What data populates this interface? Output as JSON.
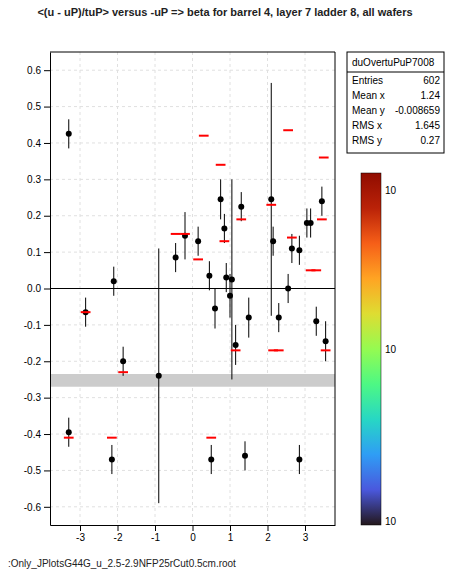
{
  "chart_data": {
    "type": "scatter",
    "title": "<(u - uP)/tuP> versus -uP => beta for barrel 4, layer 7 ladder 8, all wafers",
    "xlim": [
      -3.8,
      3.8
    ],
    "ylim": [
      -0.65,
      0.65
    ],
    "xticks": [
      -3,
      -2,
      -1,
      0,
      1,
      2,
      3
    ],
    "yticks": [
      -0.6,
      -0.5,
      -0.4,
      -0.3,
      -0.2,
      -0.1,
      {
        "value": 0.0,
        "label": "0.0"
      },
      0.1,
      0.2,
      0.3,
      0.4,
      0.5,
      0.6
    ],
    "grid": true,
    "hline": 0,
    "bands": [
      {
        "from": -0.27,
        "to": -0.235,
        "color": "#cccccc"
      }
    ],
    "series": [
      {
        "type": "scatter",
        "color": "black",
        "marker": "circle",
        "x": [
          -3.3,
          -2.85,
          -2.1,
          -1.85,
          -0.9,
          -0.45,
          -0.2,
          0.15,
          0.45,
          0.6,
          0.75,
          0.85,
          0.9,
          1.0,
          1.05,
          1.15,
          1.3,
          1.5,
          2.1,
          2.15,
          2.3,
          2.55,
          2.65,
          2.85,
          3.05,
          3.15,
          3.3,
          3.45,
          3.55,
          -3.3,
          -2.15,
          0.5,
          1.4,
          2.85
        ],
        "values": [
          0.425,
          -0.065,
          0.02,
          -0.2,
          -0.24,
          0.085,
          0.145,
          0.13,
          0.035,
          -0.055,
          0.245,
          0.165,
          0.03,
          -0.02,
          0.025,
          -0.155,
          0.225,
          -0.08,
          0.245,
          0.13,
          -0.08,
          0.0,
          0.11,
          0.105,
          0.18,
          0.18,
          -0.09,
          0.24,
          -0.145,
          -0.395,
          -0.47,
          -0.47,
          -0.46,
          -0.47
        ],
        "errors": [
          0.04,
          0.04,
          0.04,
          0.04,
          0.35,
          0.04,
          0.065,
          0.04,
          0.04,
          0.055,
          0.055,
          0.04,
          0.04,
          0.06,
          0.275,
          0.055,
          0.04,
          0.055,
          0.32,
          0.04,
          0.04,
          0.04,
          0.04,
          0.04,
          0.04,
          0.04,
          0.04,
          0.04,
          0.055,
          0.04,
          0.04,
          0.04,
          0.04,
          0.04
        ]
      },
      {
        "type": "dash",
        "color": "red",
        "x": [
          0.3,
          2.55,
          3.5,
          -0.45,
          -0.2,
          0.75,
          1.15,
          2.1,
          2.15,
          2.65,
          3.15,
          -2.85,
          -3.3,
          -2.15,
          0.5,
          3.3,
          3.45,
          3.55,
          2.3,
          1.3,
          0.85,
          0.15,
          -1.85
        ],
        "values": [
          0.42,
          0.435,
          0.36,
          0.15,
          0.15,
          0.34,
          -0.17,
          0.23,
          -0.17,
          0.14,
          0.05,
          -0.065,
          -0.41,
          -0.41,
          -0.41,
          0.05,
          0.19,
          -0.17,
          -0.17,
          0.19,
          0.13,
          0.08,
          -0.23
        ]
      }
    ],
    "annotations": [
      ":Only_JPlotsG44G_u_2.5-2.9NFP25rCut0.5cm.root"
    ],
    "stats": {
      "title": "duOvertuPuP7008",
      "rows": [
        {
          "label": "Entries",
          "value": 602
        },
        {
          "label": "Mean x",
          "value": 1.24
        },
        {
          "label": "Mean y",
          "value": -0.008659
        },
        {
          "label": "RMS x",
          "value": 1.645
        },
        {
          "label": "RMS y",
          "value": 0.27
        }
      ]
    },
    "colorbar": {
      "range": [
        1,
        1000
      ],
      "labels": [
        "10",
        "10",
        "10"
      ]
    }
  }
}
